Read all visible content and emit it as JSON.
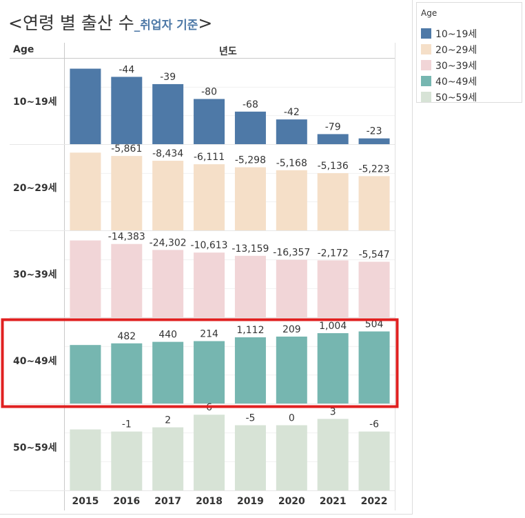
{
  "title": {
    "open": "<",
    "main": "연령 별 출산 수",
    "sub": "_취업자 기준",
    "close": ">"
  },
  "headers": {
    "row": "Age",
    "column": "년도"
  },
  "legend": {
    "title": "Age",
    "items": [
      {
        "label": "10~19세",
        "color": "#4e79a7"
      },
      {
        "label": "20~29세",
        "color": "#f5dfc8"
      },
      {
        "label": "30~39세",
        "color": "#f1d5d7"
      },
      {
        "label": "40~49세",
        "color": "#76b6b0"
      },
      {
        "label": "50~59세",
        "color": "#d7e3d6"
      }
    ]
  },
  "highlight_color": "#e02020",
  "highlighted_row": "40~49세",
  "chart_data": {
    "type": "bar",
    "x": [
      "2015",
      "2016",
      "2017",
      "2018",
      "2019",
      "2020",
      "2021",
      "2022"
    ],
    "facets": [
      {
        "name": "10~19세",
        "color": "#4e79a7",
        "heights": [
          406,
          362,
          323,
          243,
          175,
          133,
          54,
          31
        ],
        "labels": [
          "",
          "-44",
          "-39",
          "-80",
          "-68",
          "-42",
          "-79",
          "-23"
        ],
        "axis_max": 460
      },
      {
        "name": "20~29세",
        "color": "#f5dfc8",
        "heights": [
          136384,
          130523,
          122089,
          115978,
          110680,
          105512,
          100376,
          95153
        ],
        "labels": [
          "",
          "-5,861",
          "-8,434",
          "-6,111",
          "-5,298",
          "-5,168",
          "-5,136",
          "-5,223"
        ],
        "axis_max": 150000
      },
      {
        "name": "30~39세",
        "color": "#f1d5d7",
        "heights": [
          311980,
          297597,
          273295,
          262682,
          249523,
          233166,
          230994,
          225447
        ],
        "labels": [
          "",
          "-14,383",
          "-24,302",
          "-10,613",
          "-13,159",
          "-16,357",
          "-2,172",
          "-5,547"
        ],
        "axis_max": 350000
      },
      {
        "name": "40~49세",
        "color": "#76b6b0",
        "heights": [
          17100,
          17582,
          18022,
          18236,
          19348,
          19557,
          20561,
          21065
        ],
        "labels": [
          "",
          "482",
          "440",
          "214",
          "1,112",
          "209",
          "1,004",
          "504"
        ],
        "axis_max": 25000
      },
      {
        "name": "50~59세",
        "color": "#d7e3d6",
        "heights": [
          29,
          28,
          30,
          36,
          31,
          31,
          34,
          28
        ],
        "labels": [
          "",
          "-1",
          "2",
          "6",
          "-5",
          "0",
          "3",
          "-6"
        ],
        "axis_max": 41
      }
    ]
  }
}
